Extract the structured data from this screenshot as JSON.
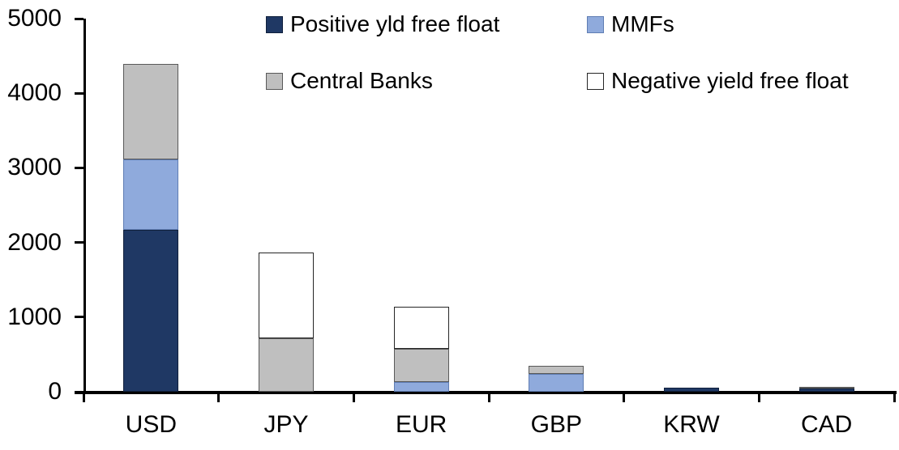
{
  "chart_data": {
    "type": "bar",
    "stacked": true,
    "title": "",
    "xlabel": "",
    "ylabel": "",
    "categories": [
      "USD",
      "JPY",
      "EUR",
      "GBP",
      "KRW",
      "CAD"
    ],
    "series": [
      {
        "name": "Positive yld free float",
        "color": "#1f3864",
        "border": "#10203c",
        "values": [
          2170,
          0,
          0,
          0,
          50,
          45
        ]
      },
      {
        "name": "MMFs",
        "color": "#8faadc",
        "border": "#5f7db3",
        "values": [
          940,
          0,
          130,
          240,
          0,
          0
        ]
      },
      {
        "name": "Central Banks",
        "color": "#bfbfbf",
        "border": "#595959",
        "values": [
          1280,
          720,
          440,
          110,
          0,
          25
        ]
      },
      {
        "name": "Negative yield free float",
        "color": "#ffffff",
        "border": "#262626",
        "values": [
          0,
          1150,
          570,
          0,
          0,
          0
        ]
      }
    ],
    "totals": [
      4390,
      1870,
      1140,
      350,
      50,
      70
    ],
    "ylim": [
      0,
      5000
    ],
    "yticks": [
      0,
      1000,
      2000,
      3000,
      4000,
      5000
    ],
    "grid": false,
    "legend_position": "top",
    "axis_color": "#000000",
    "background_color": "#ffffff"
  }
}
